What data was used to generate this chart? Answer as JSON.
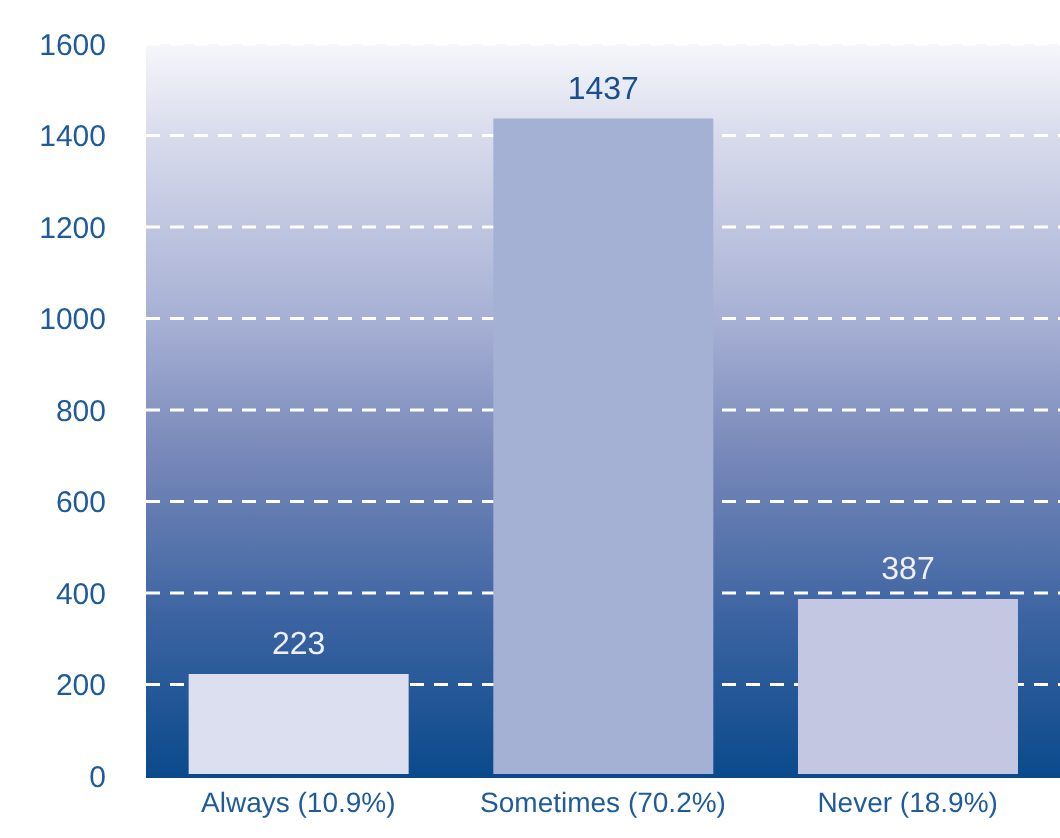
{
  "chart_data": {
    "type": "bar",
    "categories": [
      "Always (10.9%)",
      "Sometimes (70.2%)",
      "Never (18.9%)"
    ],
    "values": [
      223,
      1437,
      387
    ],
    "colors": [
      "#dcdff0",
      "#a4b0d4",
      "#c3c7e2"
    ],
    "ylim": [
      0,
      1600
    ],
    "yticks": [
      0,
      200,
      400,
      600,
      800,
      1000,
      1200,
      1400,
      1600
    ],
    "grid": "y",
    "data_labels": true
  }
}
